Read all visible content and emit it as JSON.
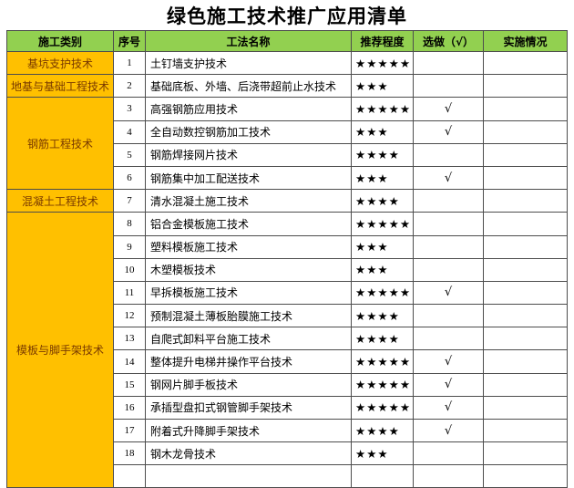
{
  "title": "绿色施工技术推广应用清单",
  "colors": {
    "title": "#000000",
    "header_bg": "#92D050",
    "category_bg": "#FFC000",
    "category_text": "#7A3A00",
    "grid": "#4D4D4D"
  },
  "table": {
    "columns": [
      {
        "key": "category",
        "label": "施工类别"
      },
      {
        "key": "no",
        "label": "序号"
      },
      {
        "key": "name",
        "label": "工法名称"
      },
      {
        "key": "stars",
        "label": "推荐程度"
      },
      {
        "key": "optional",
        "label": "选做（√）"
      },
      {
        "key": "status",
        "label": "实施情况"
      }
    ],
    "star_char": "★",
    "check_char": "√",
    "rows": [
      {
        "no": 1,
        "category": "基坑支护技术",
        "name": "土钉墙支护技术",
        "stars": 5,
        "optional": false,
        "status": ""
      },
      {
        "no": 2,
        "category": "地基与基础工程技术",
        "name": "基础底板、外墙、后浇带超前止水技术",
        "stars": 3,
        "optional": false,
        "status": ""
      },
      {
        "no": 3,
        "category": "钢筋工程技术",
        "name": "高强钢筋应用技术",
        "stars": 5,
        "optional": true,
        "status": ""
      },
      {
        "no": 4,
        "category": "钢筋工程技术",
        "name": "全自动数控钢筋加工技术",
        "stars": 3,
        "optional": true,
        "status": ""
      },
      {
        "no": 5,
        "category": "钢筋工程技术",
        "name": "钢筋焊接网片技术",
        "stars": 4,
        "optional": false,
        "status": ""
      },
      {
        "no": 6,
        "category": "钢筋工程技术",
        "name": "钢筋集中加工配送技术",
        "stars": 3,
        "optional": true,
        "status": ""
      },
      {
        "no": 7,
        "category": "混凝土工程技术",
        "name": "清水混凝土施工技术",
        "stars": 4,
        "optional": false,
        "status": ""
      },
      {
        "no": 8,
        "category": "模板与脚手架技术",
        "name": "铝合金模板施工技术",
        "stars": 5,
        "optional": false,
        "status": ""
      },
      {
        "no": 9,
        "category": "模板与脚手架技术",
        "name": "塑料模板施工技术",
        "stars": 3,
        "optional": false,
        "status": ""
      },
      {
        "no": 10,
        "category": "模板与脚手架技术",
        "name": "木塑模板技术",
        "stars": 3,
        "optional": false,
        "status": ""
      },
      {
        "no": 11,
        "category": "模板与脚手架技术",
        "name": "早拆模板施工技术",
        "stars": 5,
        "optional": true,
        "status": ""
      },
      {
        "no": 12,
        "category": "模板与脚手架技术",
        "name": "预制混凝土薄板胎膜施工技术",
        "stars": 4,
        "optional": false,
        "status": ""
      },
      {
        "no": 13,
        "category": "模板与脚手架技术",
        "name": "自爬式卸料平台施工技术",
        "stars": 4,
        "optional": false,
        "status": ""
      },
      {
        "no": 14,
        "category": "模板与脚手架技术",
        "name": "整体提升电梯井操作平台技术",
        "stars": 5,
        "optional": true,
        "status": ""
      },
      {
        "no": 15,
        "category": "模板与脚手架技术",
        "name": "钢网片脚手板技术",
        "stars": 5,
        "optional": true,
        "status": ""
      },
      {
        "no": 16,
        "category": "模板与脚手架技术",
        "name": "承插型盘扣式钢管脚手架技术",
        "stars": 5,
        "optional": true,
        "status": ""
      },
      {
        "no": 17,
        "category": "模板与脚手架技术",
        "name": "附着式升降脚手架技术",
        "stars": 4,
        "optional": true,
        "status": ""
      },
      {
        "no": 18,
        "category": "模板与脚手架技术",
        "name": "钢木龙骨技术",
        "stars": 3,
        "optional": false,
        "status": ""
      }
    ]
  }
}
